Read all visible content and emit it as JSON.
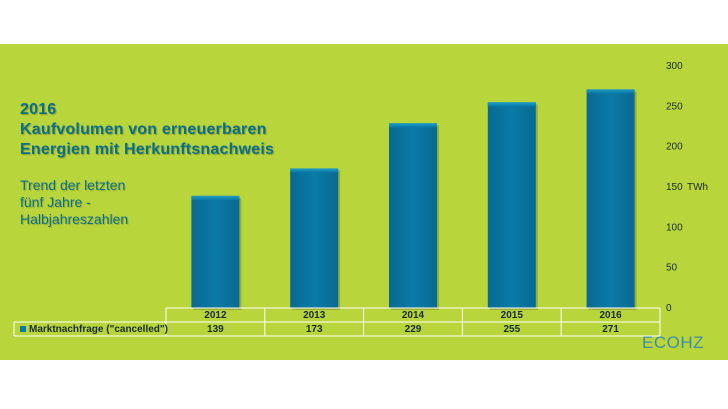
{
  "title": {
    "line1": "2016",
    "line2": "Kaufvolumen von erneuerbaren",
    "line3": "Energien mit Herkunftsnachweis"
  },
  "subtitle": {
    "line1": "Trend der letzten",
    "line2": "fünf Jahre -",
    "line3": "Halbjahreszahlen"
  },
  "logo": "ECOHZ",
  "colors": {
    "background": "#b9d53c",
    "bar": "#0a7aa6",
    "title_text": "#0c6f8a"
  },
  "chart_data": {
    "type": "bar",
    "categories": [
      "2012",
      "2013",
      "2014",
      "2015",
      "2016"
    ],
    "series": [
      {
        "name": "Marktnachfrage (\"cancelled\")",
        "values": [
          139,
          173,
          229,
          255,
          271
        ]
      }
    ],
    "ylim": [
      0,
      300
    ],
    "yticks": [
      0,
      50,
      100,
      150,
      200,
      250,
      300
    ],
    "yunit": "TWh",
    "grid": false,
    "legend": "data-table"
  }
}
